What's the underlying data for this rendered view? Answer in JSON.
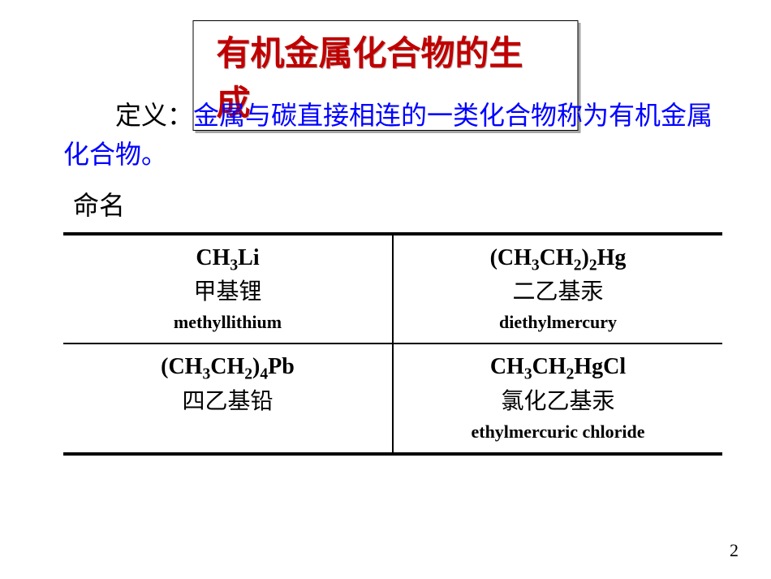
{
  "title": "有机金属化合物的生成",
  "definition": {
    "label": "定义：",
    "body": "金属与碳直接相连的一类化合物称为有机金属化合物。"
  },
  "naming_label": "命名",
  "table": {
    "rows": [
      [
        {
          "formula_html": "CH<sub>3</sub>Li",
          "cn": "甲基锂",
          "en": "methyllithium",
          "cn_narrow": false
        },
        {
          "formula_html": "(CH<sub>3</sub>CH<sub>2</sub>)<sub>2</sub>Hg",
          "cn": "二乙基汞",
          "en": "diethylmercury",
          "cn_narrow": false
        }
      ],
      [
        {
          "formula_html": "(CH<sub>3</sub>CH<sub>2</sub>)<sub>4</sub>Pb",
          "cn": "四乙基铅",
          "en": "",
          "cn_narrow": true
        },
        {
          "formula_html": "CH<sub>3</sub>CH<sub>2</sub>HgCl",
          "cn": "氯化乙基汞",
          "en": "ethylmercuric chloride",
          "cn_narrow": false
        }
      ]
    ]
  },
  "page_number": "2",
  "colors": {
    "title": "#c00000",
    "definition_body": "#0000ff",
    "text": "#000000",
    "border": "#000000",
    "background": "#ffffff"
  },
  "typography": {
    "title_fontsize": 42,
    "body_fontsize": 32,
    "formula_fontsize": 28,
    "cn_name_fontsize": 28,
    "en_name_fontsize": 22,
    "page_num_fontsize": 22
  }
}
